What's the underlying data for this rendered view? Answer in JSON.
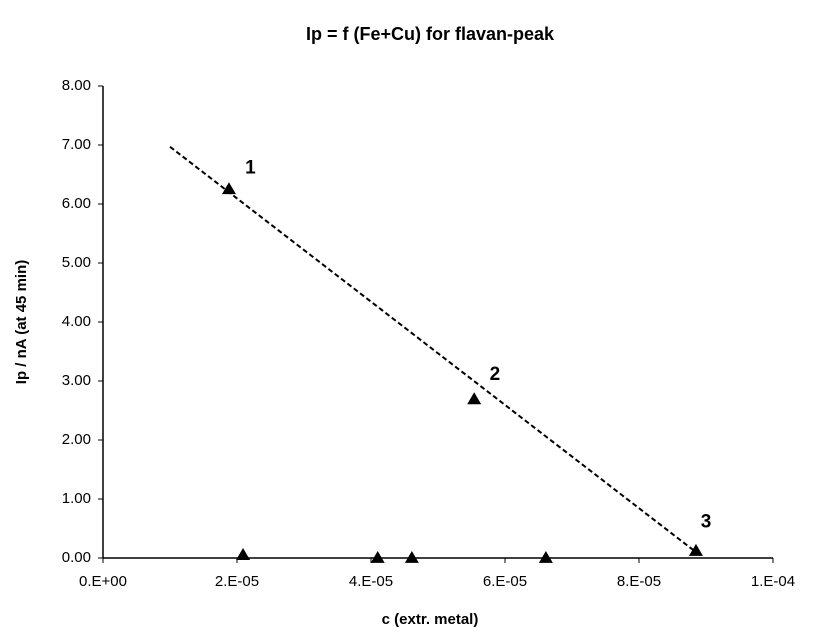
{
  "chart_data": {
    "type": "scatter",
    "title": "Ip = f (Fe+Cu) for flavan-peak",
    "x_label": "c (extr. metal)",
    "y_label": "Ip / nA (at 45 min)",
    "x": [
      1.88e-05,
      5.54e-05,
      8.85e-05,
      2.09e-05,
      4.1e-05,
      4.61e-05,
      6.61e-05
    ],
    "y": [
      6.25,
      2.69,
      0.12,
      0.05,
      0.0,
      0.0,
      0.0
    ],
    "color": "#000000",
    "marker": "triangle",
    "trendline": {
      "x": [
        1e-05,
        8.85e-05
      ],
      "y": [
        6.97,
        0.1
      ],
      "color": "#000000",
      "dashed": true
    },
    "annotations": [
      {
        "text": "1",
        "x": 2.2e-05,
        "y": 6.6
      },
      {
        "text": "2",
        "x": 5.85e-05,
        "y": 3.1
      },
      {
        "text": "3",
        "x": 9e-05,
        "y": 0.6
      }
    ],
    "xlim": [
      0,
      0.0001
    ],
    "ylim": [
      0,
      8
    ],
    "xticks": [
      {
        "value": 0,
        "label": "0.E+00"
      },
      {
        "value": 2e-05,
        "label": "2.E-05"
      },
      {
        "value": 4e-05,
        "label": "4.E-05"
      },
      {
        "value": 6e-05,
        "label": "6.E-05"
      },
      {
        "value": 8e-05,
        "label": "8.E-05"
      },
      {
        "value": 0.0001,
        "label": "1.E-04"
      }
    ],
    "yticks": [
      {
        "value": 0,
        "label": "0.00"
      },
      {
        "value": 1,
        "label": "1.00"
      },
      {
        "value": 2,
        "label": "2.00"
      },
      {
        "value": 3,
        "label": "3.00"
      },
      {
        "value": 4,
        "label": "4.00"
      },
      {
        "value": 5,
        "label": "5.00"
      },
      {
        "value": 6,
        "label": "6.00"
      },
      {
        "value": 7,
        "label": "7.00"
      },
      {
        "value": 8,
        "label": "8.00"
      }
    ],
    "grid": false
  }
}
